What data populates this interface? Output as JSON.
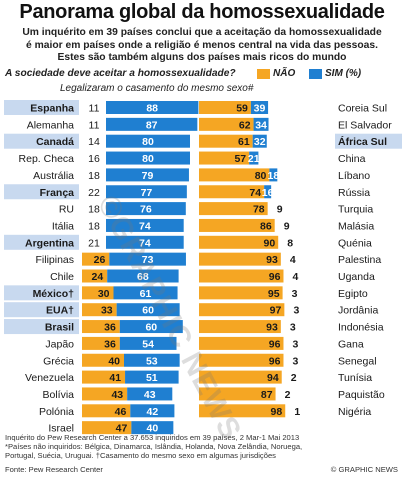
{
  "title": "Panorama global da homossexualidade",
  "subtitle_lines": [
    "Um inquérito em 39 países conclui que a aceitação da homossexualidade",
    "é maior em países onde a religião é menos central na vida das pessoas.",
    "Estes são também alguns dos países mais ricos do mundo"
  ],
  "question": "A sociedade deve aceitar a homossexualidade?",
  "legend": {
    "no": "NÃO",
    "yes": "SIM",
    "unit": "(%)"
  },
  "subquestion": "Legalizaram o casamento do mesmo sexo#",
  "colors": {
    "no": "#f5a623",
    "yes": "#1f7fd1",
    "highlight": "#c8d9ef",
    "row_alt": "#eef3fa"
  },
  "chart_data": [
    {
      "type": "bar",
      "side": "left",
      "series_order": [
        "no",
        "yes"
      ],
      "categories": [
        "Espanha",
        "Alemanha",
        "Canadá",
        "Rep. Checa",
        "Austrália",
        "França",
        "RU",
        "Itália",
        "Argentina",
        "Filipinas",
        "Chile",
        "México†",
        "EUA†",
        "Brasil",
        "Japão",
        "Grécia",
        "Venezuela",
        "Bolívia",
        "Polónia",
        "Israel"
      ],
      "highlighted": [
        "Espanha",
        "Canadá",
        "França",
        "Argentina",
        "México†",
        "EUA†",
        "Brasil"
      ],
      "no": [
        11,
        11,
        14,
        16,
        18,
        22,
        18,
        18,
        21,
        26,
        24,
        30,
        33,
        36,
        36,
        40,
        41,
        43,
        46,
        47
      ],
      "yes": [
        88,
        87,
        80,
        80,
        79,
        77,
        76,
        74,
        74,
        73,
        68,
        61,
        60,
        60,
        54,
        53,
        51,
        43,
        42,
        40
      ],
      "ylim": [
        0,
        100
      ]
    },
    {
      "type": "bar",
      "side": "right",
      "series_order": [
        "no",
        "yes"
      ],
      "categories": [
        "Coreia Sul",
        "El Salvador",
        "África Sul",
        "China",
        "Líbano",
        "Rússia",
        "Turquia",
        "Malásia",
        "Quénia",
        "Palestina",
        "Uganda",
        "Egipto",
        "Jordânia",
        "Indonésia",
        "Gana",
        "Senegal",
        "Tunísia",
        "Paquistão",
        "Nigéria"
      ],
      "highlighted": [
        "África Sul"
      ],
      "no": [
        59,
        62,
        61,
        57,
        80,
        74,
        78,
        86,
        90,
        93,
        96,
        95,
        97,
        93,
        96,
        96,
        94,
        87,
        98
      ],
      "yes": [
        39,
        34,
        32,
        21,
        18,
        16,
        9,
        9,
        8,
        4,
        4,
        3,
        3,
        3,
        3,
        3,
        2,
        2,
        1
      ],
      "ylim": [
        0,
        100
      ]
    }
  ],
  "footnotes": [
    "Inquérito do Pew Research Center a 37.653 inquiridos em 39 países, 2 Mar-1 Mai 2013",
    "*Países não inquiridos: Bélgica, Dinamarca, Islândia, Holanda, Nova Zelândia, Noruega,",
    "Portugal, Suécia, Uruguai. †Casamento do mesmo sexo em algumas jurisdições",
    "Fonte: Pew Research Center"
  ],
  "credit": "© GRAPHIC NEWS",
  "watermark": "©GRAPHIC NEWS"
}
